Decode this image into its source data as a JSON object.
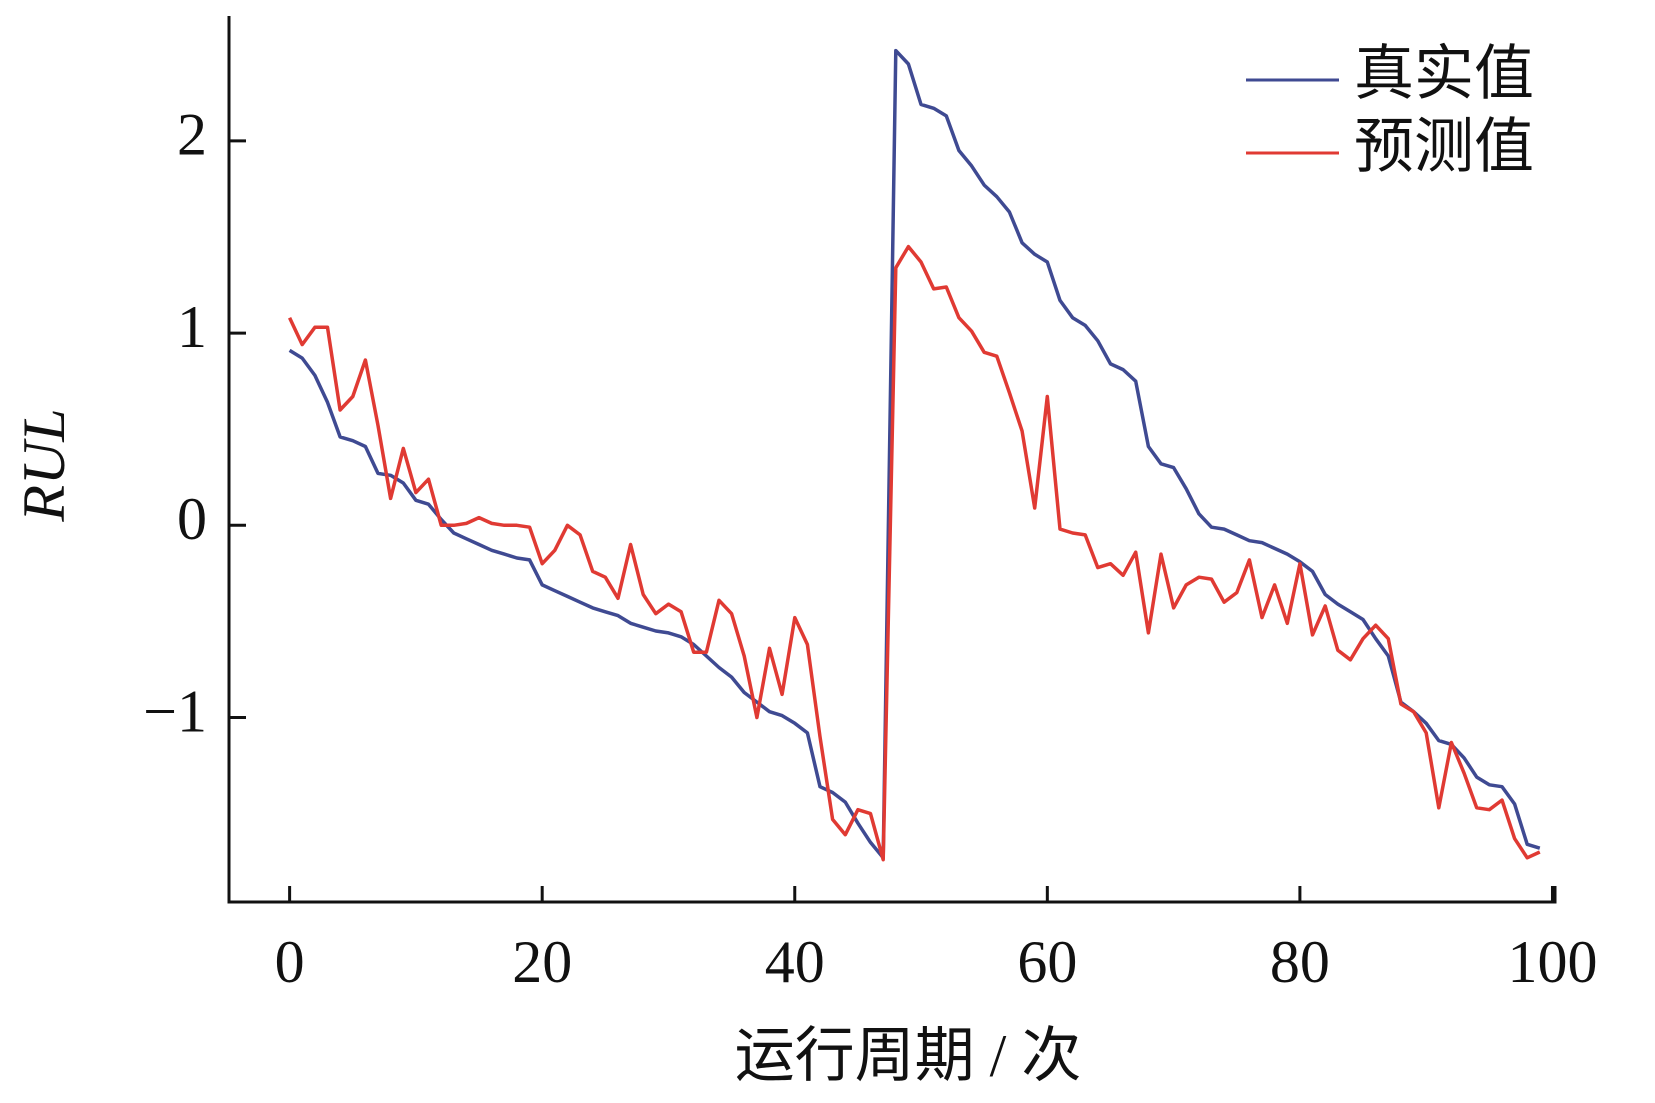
{
  "chart_data": {
    "type": "line",
    "xlabel": "运行周期 / 次",
    "ylabel": "RUL",
    "x": [
      0,
      1,
      2,
      3,
      4,
      5,
      6,
      7,
      8,
      9,
      10,
      11,
      12,
      13,
      14,
      15,
      16,
      17,
      18,
      19,
      20,
      21,
      22,
      23,
      24,
      25,
      26,
      27,
      28,
      29,
      30,
      31,
      32,
      33,
      34,
      35,
      36,
      37,
      38,
      39,
      40,
      41,
      42,
      43,
      44,
      45,
      46,
      47,
      48,
      49,
      50,
      51,
      52,
      53,
      54,
      55,
      56,
      57,
      58,
      59,
      60,
      61,
      62,
      63,
      64,
      65,
      66,
      67,
      68,
      69,
      70,
      71,
      72,
      73,
      74,
      75,
      76,
      77,
      78,
      79,
      80,
      81,
      82,
      83,
      84,
      85,
      86,
      87,
      88,
      89,
      90,
      91,
      92,
      93,
      94,
      95,
      96,
      97,
      98,
      99
    ],
    "series": [
      {
        "name": "真实值",
        "color": "#3f4a92",
        "values": [
          0.91,
          0.87,
          0.78,
          0.64,
          0.46,
          0.44,
          0.41,
          0.27,
          0.26,
          0.22,
          0.13,
          0.11,
          0.03,
          -0.04,
          -0.07,
          -0.1,
          -0.13,
          -0.15,
          -0.17,
          -0.18,
          -0.31,
          -0.34,
          -0.37,
          -0.4,
          -0.43,
          -0.45,
          -0.47,
          -0.51,
          -0.53,
          -0.55,
          -0.56,
          -0.58,
          -0.62,
          -0.68,
          -0.74,
          -0.79,
          -0.87,
          -0.92,
          -0.97,
          -0.99,
          -1.03,
          -1.08,
          -1.36,
          -1.39,
          -1.44,
          -1.55,
          -1.65,
          -1.73,
          2.47,
          2.4,
          2.19,
          2.17,
          2.13,
          1.95,
          1.87,
          1.77,
          1.71,
          1.63,
          1.47,
          1.41,
          1.37,
          1.17,
          1.08,
          1.04,
          0.96,
          0.84,
          0.81,
          0.75,
          0.41,
          0.32,
          0.3,
          0.19,
          0.06,
          -0.01,
          -0.02,
          -0.05,
          -0.08,
          -0.09,
          -0.12,
          -0.15,
          -0.19,
          -0.24,
          -0.36,
          -0.41,
          -0.45,
          -0.49,
          -0.59,
          -0.68,
          -0.92,
          -0.97,
          -1.03,
          -1.12,
          -1.14,
          -1.21,
          -1.31,
          -1.35,
          -1.36,
          -1.45,
          -1.66,
          -1.68
        ]
      },
      {
        "name": "预测值",
        "color": "#e03a33",
        "values": [
          1.08,
          0.94,
          1.03,
          1.03,
          0.6,
          0.67,
          0.86,
          0.52,
          0.14,
          0.4,
          0.17,
          0.24,
          0.0,
          0.0,
          0.01,
          0.04,
          0.01,
          0.0,
          0.0,
          -0.01,
          -0.2,
          -0.13,
          0.0,
          -0.05,
          -0.24,
          -0.27,
          -0.38,
          -0.1,
          -0.36,
          -0.46,
          -0.41,
          -0.45,
          -0.66,
          -0.66,
          -0.39,
          -0.46,
          -0.68,
          -1.0,
          -0.64,
          -0.88,
          -0.48,
          -0.62,
          -1.1,
          -1.53,
          -1.61,
          -1.48,
          -1.5,
          -1.74,
          1.34,
          1.45,
          1.37,
          1.23,
          1.24,
          1.08,
          1.01,
          0.9,
          0.88,
          0.69,
          0.49,
          0.09,
          0.67,
          -0.02,
          -0.04,
          -0.05,
          -0.22,
          -0.2,
          -0.26,
          -0.14,
          -0.56,
          -0.15,
          -0.43,
          -0.31,
          -0.27,
          -0.28,
          -0.4,
          -0.35,
          -0.18,
          -0.48,
          -0.31,
          -0.51,
          -0.2,
          -0.57,
          -0.42,
          -0.65,
          -0.7,
          -0.59,
          -0.52,
          -0.59,
          -0.93,
          -0.97,
          -1.08,
          -1.47,
          -1.13,
          -1.29,
          -1.47,
          -1.48,
          -1.43,
          -1.63,
          -1.73,
          -1.7
        ]
      }
    ],
    "xlim": [
      -4.8,
      100.2
    ],
    "ylim": [
      -1.96,
      2.65
    ],
    "xticks": [
      0,
      20,
      40,
      60,
      80,
      100
    ],
    "yticks": [
      {
        "value": -1,
        "label": "−1"
      },
      0,
      1,
      2
    ],
    "legend": "upper right"
  }
}
